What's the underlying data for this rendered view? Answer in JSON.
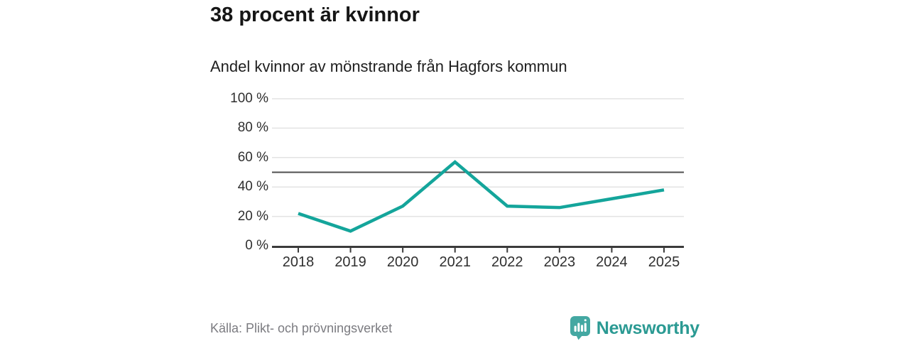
{
  "title": "38 procent är kvinnor",
  "subtitle": "Andel kvinnor av mönstrande från Hagfors kommun",
  "source": "Källa: Plikt- och prövningsverket",
  "branding": {
    "name": "Newsworthy",
    "icon": "newsworthy-speech-bubble-bars-icon",
    "icon_color": "#44a8a2",
    "text_color": "#2b9a93"
  },
  "colors": {
    "line": "#14a59b",
    "grid": "#e3e3e3",
    "reference_line": "#4f4f4f",
    "axis": "#3b3b3b",
    "axis_text": "#2f2f2f",
    "title_text": "#161616",
    "muted_text": "#7b7b80",
    "background": "#ffffff"
  },
  "chart_data": {
    "type": "line",
    "title": "38 procent är kvinnor",
    "subtitle": "Andel kvinnor av mönstrande från Hagfors kommun",
    "x": [
      2018,
      2019,
      2020,
      2021,
      2022,
      2023,
      2024,
      2025
    ],
    "series": [
      {
        "name": "Andel kvinnor av mönstrande, Hagfors kommun",
        "values": [
          22,
          10,
          27,
          57,
          27,
          26,
          32,
          38
        ]
      }
    ],
    "ylim": [
      0,
      100
    ],
    "yticks": [
      0,
      20,
      40,
      60,
      80,
      100
    ],
    "ytick_suffix": " %",
    "reference_line": 50,
    "grid": "horizontal",
    "legend": "none",
    "xlabel": "",
    "ylabel": ""
  }
}
